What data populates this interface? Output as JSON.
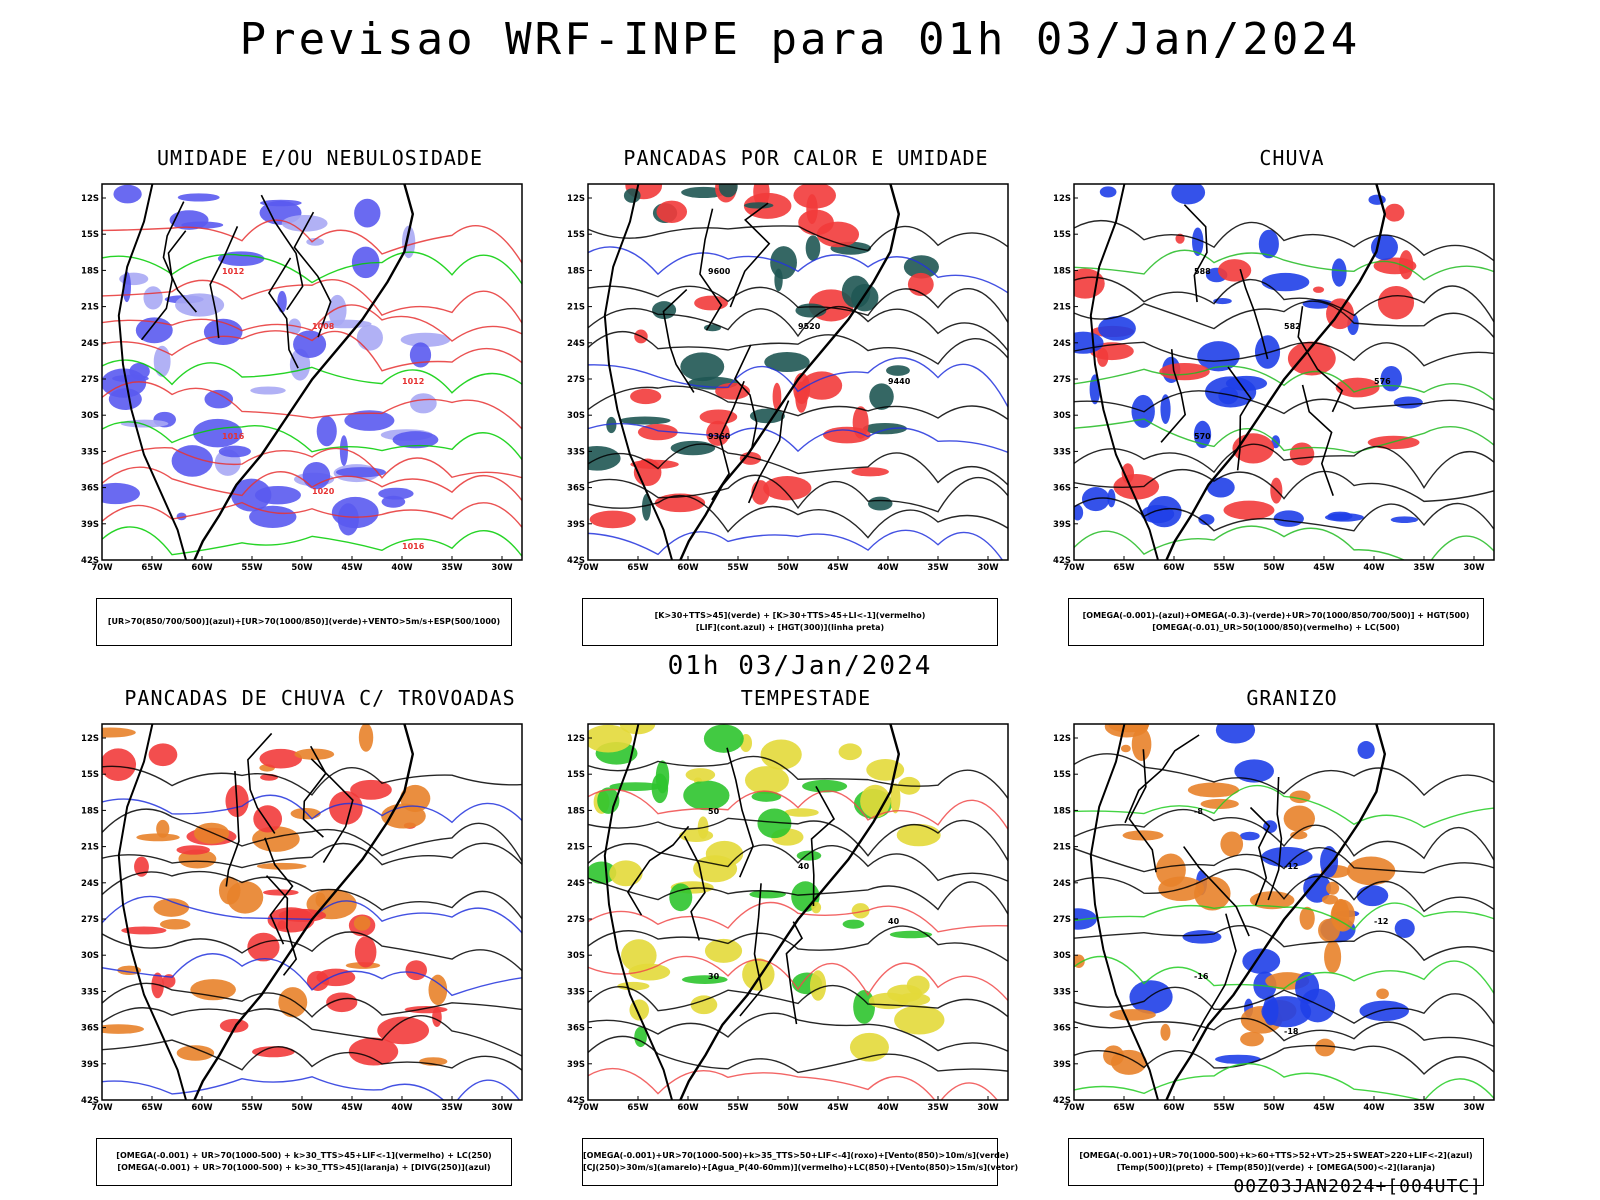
{
  "header": {
    "title": "Previsao WRF-INPE  para 01h 03/Jan/2024"
  },
  "mid_title": "01h 03/Jan/2024",
  "footer": "00Z03JAN2024+[004UTC]",
  "chart_data": [
    {
      "type": "map",
      "title": "UMIDADE E/OU NEBULOSIDADE",
      "lat_labels": [
        "12S",
        "15S",
        "18S",
        "21S",
        "24S",
        "27S",
        "30S",
        "33S",
        "36S",
        "39S",
        "42S"
      ],
      "lon_labels": [
        "70W",
        "65W",
        "60W",
        "55W",
        "50W",
        "45W",
        "40W",
        "35W",
        "30W"
      ],
      "legend": [
        "[UR>70(850/700/500)](azul)+[UR>70(1000/850)](verde)+VENTO>5m/s+ESP(500/1000)"
      ],
      "contour_labels": [
        "1012",
        "1008",
        "1012",
        "1016",
        "1020",
        "1016"
      ],
      "colors": {
        "fill_a": "#5a5af0",
        "fill_b": "#a8a8f4",
        "line_a": "#00cc00",
        "line_b": "#e63232"
      }
    },
    {
      "type": "map",
      "title": "PANCADAS POR CALOR E UMIDADE",
      "lat_labels": [
        "12S",
        "15S",
        "18S",
        "21S",
        "24S",
        "27S",
        "30S",
        "33S",
        "36S",
        "39S",
        "42S"
      ],
      "lon_labels": [
        "70W",
        "65W",
        "60W",
        "55W",
        "50W",
        "45W",
        "40W",
        "35W",
        "30W"
      ],
      "legend": [
        "[K>30+TTS>45](verde) + [K>30+TTS>45+LI<-1](vermelho)",
        "[LIF](cont.azul) + [HGT(300)](linha preta)"
      ],
      "contour_labels": [
        "9600",
        "9520",
        "9440",
        "9360"
      ],
      "colors": {
        "fill_a": "#f23b3b",
        "fill_b": "#1f5753",
        "line_a": "#2233dd",
        "line_b": "#000000"
      }
    },
    {
      "type": "map",
      "title": "CHUVA",
      "lat_labels": [
        "12S",
        "15S",
        "18S",
        "21S",
        "24S",
        "27S",
        "30S",
        "33S",
        "36S",
        "39S",
        "42S"
      ],
      "lon_labels": [
        "70W",
        "65W",
        "60W",
        "55W",
        "50W",
        "45W",
        "40W",
        "35W",
        "30W"
      ],
      "legend": [
        "[OMEGA(-0.001)-(azul)+OMEGA(-0.3)-(verde)+UR>70(1000/850/700/500)] + HGT(500)",
        "[OMEGA(-0.01)_UR>50(1000/850)(vermelho) + LC(500)"
      ],
      "contour_labels": [
        "588",
        "582",
        "576",
        "570"
      ],
      "colors": {
        "fill_a": "#1f3fe8",
        "fill_b": "#f23b3b",
        "line_a": "#22bb22",
        "line_b": "#000000"
      }
    },
    {
      "type": "map",
      "title": "PANCADAS DE CHUVA C/ TROVOADAS",
      "lat_labels": [
        "12S",
        "15S",
        "18S",
        "21S",
        "24S",
        "27S",
        "30S",
        "33S",
        "36S",
        "39S",
        "42S"
      ],
      "lon_labels": [
        "70W",
        "65W",
        "60W",
        "55W",
        "50W",
        "45W",
        "40W",
        "35W",
        "30W"
      ],
      "legend": [
        "[OMEGA(-0.001) + UR>70(1000-500) + k>30_TTS>45+LIF<-1](vermelho) + LC(250)",
        "[OMEGA(-0.001) + UR>70(1000-500) + k>30_TTS>45](laranja) + [DIVG(250)](azul)"
      ],
      "contour_labels": [],
      "colors": {
        "fill_a": "#f23b3b",
        "fill_b": "#e8822a",
        "line_a": "#2233dd",
        "line_b": "#000000"
      }
    },
    {
      "type": "map",
      "title": "TEMPESTADE",
      "lat_labels": [
        "12S",
        "15S",
        "18S",
        "21S",
        "24S",
        "27S",
        "30S",
        "33S",
        "36S",
        "39S",
        "42S"
      ],
      "lon_labels": [
        "70W",
        "65W",
        "60W",
        "55W",
        "50W",
        "45W",
        "40W",
        "35W",
        "30W"
      ],
      "legend": [
        "[OMEGA(-0.001)+UR>70(1000-500)+k>35_TTS>50+LIF<-4](roxo)+[Vento(850)>10m/s](verde)",
        "[CJ(250)>30m/s](amarelo)+[Agua_P(40-60mm)](vermelho)+LC(850)+[Vento(850)>15m/s](vetor)"
      ],
      "contour_labels": [
        "50",
        "40",
        "40",
        "30"
      ],
      "colors": {
        "fill_a": "#e3d93a",
        "fill_b": "#2ec42e",
        "line_a": "#f04a4a",
        "line_b": "#000000"
      }
    },
    {
      "type": "map",
      "title": "GRANIZO",
      "lat_labels": [
        "12S",
        "15S",
        "18S",
        "21S",
        "24S",
        "27S",
        "30S",
        "33S",
        "36S",
        "39S",
        "42S"
      ],
      "lon_labels": [
        "70W",
        "65W",
        "60W",
        "55W",
        "50W",
        "45W",
        "40W",
        "35W",
        "30W"
      ],
      "legend": [
        "[OMEGA(-0.001)+UR>70(1000-500)+k>60+TTS>52+VT>25+SWEAT>220+LIF<-2](azul)",
        "[Temp(500)](preto) + [Temp(850)](verde) + [OMEGA(500)<-2](laranja)"
      ],
      "contour_labels": [
        "-8",
        "-12",
        "-12",
        "-16",
        "-18"
      ],
      "colors": {
        "fill_a": "#e8822a",
        "fill_b": "#1f3fe8",
        "line_a": "#22cc22",
        "line_b": "#000000"
      }
    }
  ]
}
